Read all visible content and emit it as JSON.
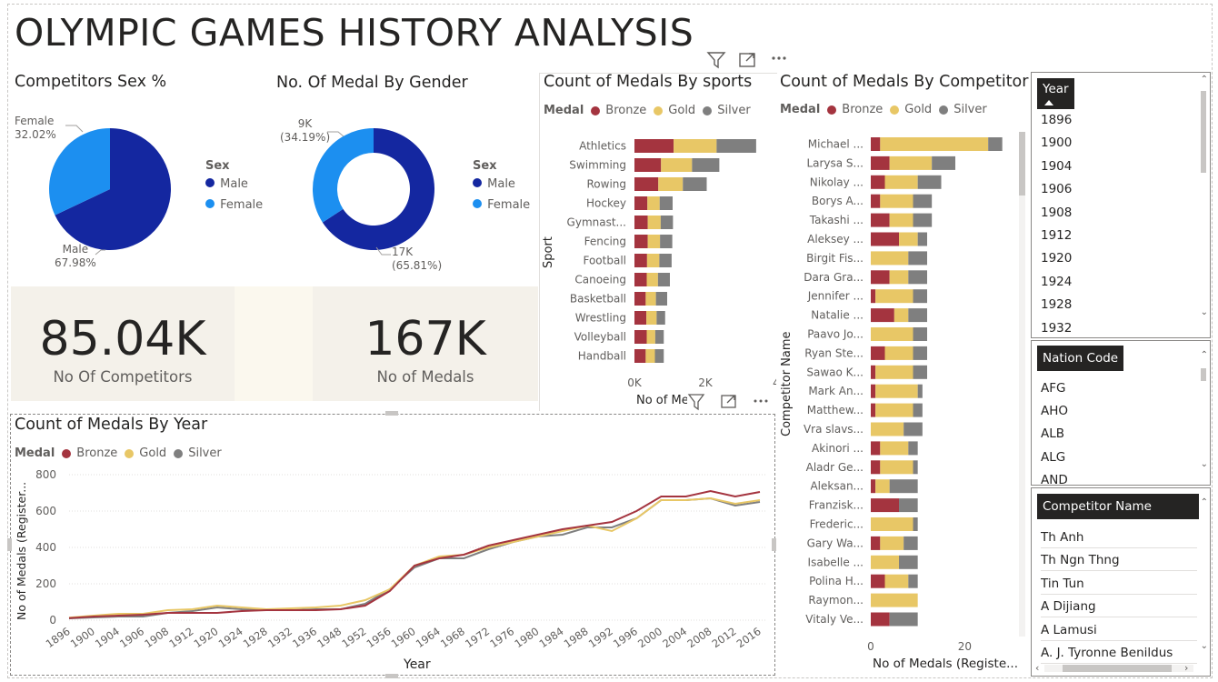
{
  "page": {
    "title": "OLYMPIC GAMES HISTORY ANALYSIS"
  },
  "colors": {
    "bronze": "#a4343f",
    "gold": "#e8c766",
    "silver": "#7f7f7f",
    "male": "#1427a0",
    "female": "#1c8ff0",
    "kpi_bg": "#f4f1ea"
  },
  "toolbar_icons": [
    "filter-icon",
    "focus-mode-icon",
    "more-options-icon"
  ],
  "competitors_sex": {
    "title": "Competitors Sex %",
    "legend_title": "Sex",
    "legend": [
      "Male",
      "Female"
    ],
    "labels": {
      "female_name": "Female",
      "female_pct": "32.02%",
      "male_name": "Male",
      "male_pct": "67.98%"
    },
    "chart_data": {
      "type": "pie",
      "categories": [
        "Male",
        "Female"
      ],
      "values": [
        67.98,
        32.02
      ],
      "title": "Competitors Sex %"
    }
  },
  "medal_by_gender": {
    "title": "No. Of Medal By Gender",
    "legend_title": "Sex",
    "legend": [
      "Male",
      "Female"
    ],
    "labels": {
      "female_val": "9K",
      "female_pct": "(34.19%)",
      "male_val": "17K",
      "male_pct": "(65.81%)"
    },
    "chart_data": {
      "type": "pie",
      "categories": [
        "Male",
        "Female"
      ],
      "values": [
        65.81,
        34.19
      ],
      "title": "No. Of Medal By Gender"
    }
  },
  "kpi": {
    "competitors": {
      "value": "85.04K",
      "label": "No Of Competitors"
    },
    "medals": {
      "value": "167K",
      "label": "No of Medals"
    }
  },
  "medals_by_sports": {
    "title": "Count of Medals By sports",
    "legend_title": "Medal",
    "legend": [
      "Bronze",
      "Gold",
      "Silver"
    ],
    "ylabel": "Sport",
    "xlabel": "No of Medals (Registered)",
    "xlabel_visible": "No of Me",
    "xticks": [
      "0K",
      "2K",
      "4"
    ],
    "chart_data": {
      "type": "bar",
      "orientation": "horizontal",
      "stacked": true,
      "categories": [
        "Athletics",
        "Swimming",
        "Rowing",
        "Hockey",
        "Gymnast...",
        "Fencing",
        "Football",
        "Canoeing",
        "Basketball",
        "Wrestling",
        "Volleyball",
        "Handball"
      ],
      "series": [
        {
          "name": "Bronze",
          "values": [
            1150,
            780,
            700,
            380,
            390,
            390,
            370,
            360,
            330,
            350,
            360,
            330
          ]
        },
        {
          "name": "Gold",
          "values": [
            1260,
            910,
            720,
            360,
            380,
            360,
            360,
            330,
            300,
            300,
            250,
            270
          ]
        },
        {
          "name": "Silver",
          "values": [
            1160,
            800,
            700,
            380,
            360,
            360,
            360,
            350,
            330,
            250,
            250,
            260
          ]
        }
      ],
      "xlim": [
        0,
        4000
      ],
      "title": "Count of Medals By sports"
    }
  },
  "medals_by_competitor": {
    "title": "Count of Medals By Competitor",
    "legend_title": "Medal",
    "legend": [
      "Bronze",
      "Gold",
      "Silver"
    ],
    "ylabel": "Competitor Name",
    "xlabel": "No of Medals (Registe...",
    "xticks": [
      "0",
      "20"
    ],
    "chart_data": {
      "type": "bar",
      "orientation": "horizontal",
      "stacked": true,
      "categories": [
        "Michael ...",
        "Larysa S...",
        "Nikolay ...",
        "Borys A...",
        "Takashi ...",
        "Aleksey ...",
        "Birgit Fis...",
        "Dara Gra...",
        "Jennifer ...",
        "Natalie ...",
        "Paavo Jo...",
        "Ryan Ste...",
        "Sawao K...",
        "Mark An...",
        "Matthew...",
        "Vra slavs...",
        "Akinori ...",
        "Aladr Ge...",
        "Aleksan...",
        "Franzisk...",
        "Frederic...",
        "Gary Wa...",
        "Isabelle ...",
        "Polina H...",
        "Raymon...",
        "Vitaly Ve..."
      ],
      "series": [
        {
          "name": "Bronze",
          "values": [
            2,
            4,
            3,
            2,
            4,
            6,
            0,
            4,
            1,
            5,
            0,
            3,
            1,
            1,
            1,
            0,
            2,
            2,
            1,
            6,
            0,
            2,
            0,
            3,
            0,
            4
          ]
        },
        {
          "name": "Gold",
          "values": [
            23,
            9,
            7,
            7,
            5,
            4,
            8,
            4,
            8,
            3,
            9,
            6,
            8,
            9,
            8,
            7,
            6,
            7,
            3,
            0,
            9,
            5,
            6,
            5,
            10,
            0
          ]
        },
        {
          "name": "Silver",
          "values": [
            3,
            5,
            5,
            4,
            4,
            2,
            4,
            4,
            3,
            4,
            3,
            3,
            3,
            1,
            2,
            4,
            2,
            1,
            6,
            4,
            1,
            3,
            4,
            2,
            0,
            6
          ]
        }
      ],
      "xlim": [
        0,
        30
      ],
      "title": "Count of Medals By Competitor"
    }
  },
  "medals_by_year": {
    "title": "Count of Medals By Year",
    "legend_title": "Medal",
    "legend": [
      "Bronze",
      "Gold",
      "Silver"
    ],
    "ylabel": "No of Medals (Register...",
    "xlabel": "Year",
    "yticks": [
      "0",
      "200",
      "400",
      "600",
      "800"
    ],
    "chart_data": {
      "type": "line",
      "x": [
        "1896",
        "1900",
        "1904",
        "1906",
        "1908",
        "1912",
        "1920",
        "1924",
        "1928",
        "1932",
        "1936",
        "1948",
        "1952",
        "1956",
        "1960",
        "1964",
        "1968",
        "1972",
        "1976",
        "1980",
        "1984",
        "1988",
        "1992",
        "1996",
        "2000",
        "2004",
        "2008",
        "2012",
        "2016"
      ],
      "series": [
        {
          "name": "Bronze",
          "values": [
            11,
            20,
            25,
            30,
            40,
            40,
            40,
            50,
            55,
            55,
            55,
            60,
            80,
            160,
            300,
            340,
            360,
            410,
            440,
            470,
            500,
            520,
            540,
            600,
            680,
            680,
            710,
            680,
            705
          ]
        },
        {
          "name": "Gold",
          "values": [
            14,
            25,
            35,
            35,
            55,
            60,
            80,
            70,
            60,
            65,
            70,
            80,
            110,
            170,
            300,
            350,
            360,
            400,
            430,
            460,
            490,
            520,
            490,
            560,
            660,
            660,
            670,
            640,
            660
          ]
        },
        {
          "name": "Silver",
          "values": [
            10,
            15,
            20,
            20,
            40,
            50,
            70,
            60,
            55,
            55,
            60,
            60,
            90,
            170,
            290,
            340,
            340,
            390,
            430,
            460,
            470,
            510,
            510,
            560,
            660,
            660,
            670,
            630,
            650
          ]
        }
      ],
      "ylim": [
        0,
        800
      ],
      "title": "Count of Medals By Year",
      "xlabel": "Year",
      "ylabel": "No of Medals (Registered)"
    }
  },
  "slicers": {
    "year": {
      "header": "Year",
      "items": [
        "1896",
        "1900",
        "1904",
        "1906",
        "1908",
        "1912",
        "1920",
        "1924",
        "1928",
        "1932"
      ]
    },
    "nation": {
      "header": "Nation Code",
      "items": [
        "AFG",
        "AHO",
        "ALB",
        "ALG",
        "AND"
      ]
    },
    "competitor": {
      "header": "Competitor Name",
      "items": [
        "Th Anh",
        "Th Ngn Thng",
        "Tin Tun",
        "A Dijiang",
        "A Lamusi",
        "A. J. Tyronne Benildus"
      ]
    }
  }
}
